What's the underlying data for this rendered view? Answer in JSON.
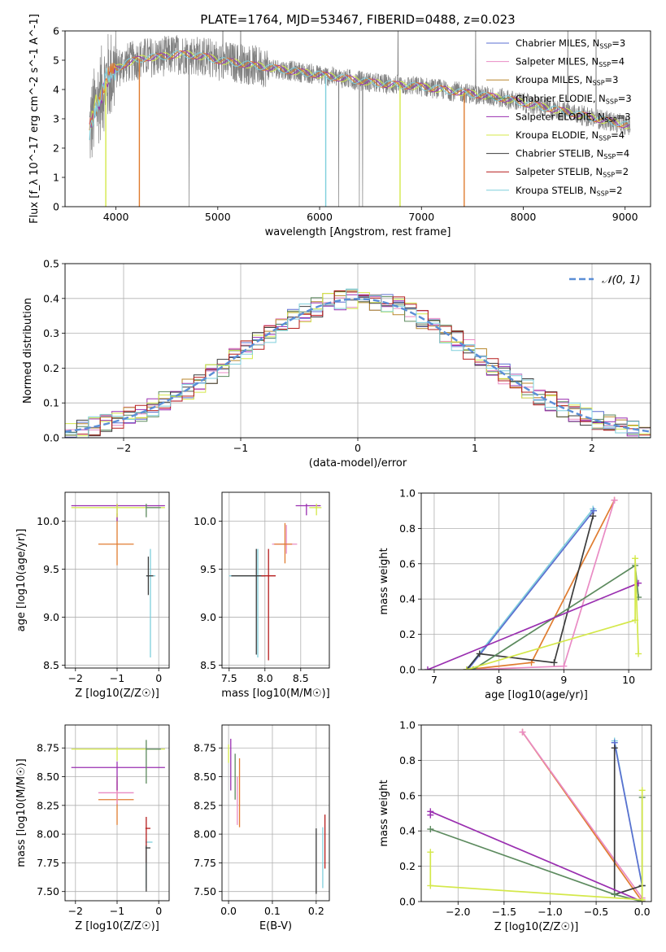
{
  "figure_title": "PLATE=1764, MJD=53467, FIBERID=0488, z=0.023",
  "colors": {
    "chabrier_miles": "#5b6fd0",
    "salpeter_miles": "#e98bc4",
    "kroupa_miles": "#b8862b",
    "chabrier_elodie": "#5c8a5e",
    "salpeter_elodie": "#9a2fb0",
    "kroupa_elodie": "#d4e84a",
    "chabrier_stelib": "#3c3c3c",
    "salpeter_stelib": "#b51c1c",
    "kroupa_stelib": "#7fcfdc",
    "data_gray": "#808080",
    "model_orange": "#e07c30",
    "gaussian": "#5b8ed6",
    "grid": "#b0b0b0"
  },
  "chart_data": [
    {
      "id": "spectrum",
      "type": "line",
      "xlabel": "wavelength [Angstrom, rest frame]",
      "ylabel": "Flux [f_λ 10^-17 erg cm^-2 s^-1 A^-1]",
      "xlim": [
        3500,
        9250
      ],
      "ylim": [
        0,
        6
      ],
      "xticks": [
        4000,
        5000,
        6000,
        7000,
        8000,
        9000
      ],
      "yticks": [
        0,
        1,
        2,
        3,
        4,
        5,
        6
      ],
      "grid": false,
      "legend_position": "upper-right",
      "legend": [
        {
          "label": "Chabrier MILES, N",
          "sub": "SSP",
          "suffix": "=3",
          "color_key": "chabrier_miles"
        },
        {
          "label": "Salpeter MILES, N",
          "sub": "SSP",
          "suffix": "=4",
          "color_key": "salpeter_miles"
        },
        {
          "label": "Kroupa MILES, N",
          "sub": "SSP",
          "suffix": "=3",
          "color_key": "kroupa_miles"
        },
        {
          "label": "Chabrier ELODIE, N",
          "sub": "SSP",
          "suffix": "=3",
          "color_key": "chabrier_elodie"
        },
        {
          "label": "Salpeter ELODIE, N",
          "sub": "SSP",
          "suffix": "=3",
          "color_key": "salpeter_elodie"
        },
        {
          "label": "Kroupa ELODIE, N",
          "sub": "SSP",
          "suffix": "=4",
          "color_key": "kroupa_elodie"
        },
        {
          "label": "Chabrier STELIB, N",
          "sub": "SSP",
          "suffix": "=4",
          "color_key": "chabrier_stelib"
        },
        {
          "label": "Salpeter STELIB, N",
          "sub": "SSP",
          "suffix": "=2",
          "color_key": "salpeter_stelib"
        },
        {
          "label": "Kroupa STELIB, N",
          "sub": "SSP",
          "suffix": "=2",
          "color_key": "kroupa_stelib"
        }
      ],
      "continuum": {
        "x": [
          3740,
          3800,
          3900,
          4000,
          4100,
          4200,
          4300,
          4400,
          4500,
          4600,
          4700,
          4800,
          4900,
          5000,
          5200,
          5400,
          5600,
          5800,
          6000,
          6200,
          6400,
          6600,
          6800,
          7000,
          7200,
          7400,
          7600,
          7800,
          8000,
          8200,
          8400,
          8600,
          8800,
          9000,
          9050
        ],
        "y": [
          2.6,
          3.4,
          4.3,
          4.7,
          4.9,
          5.0,
          5.1,
          5.1,
          5.15,
          5.2,
          5.2,
          5.15,
          5.1,
          5.0,
          4.9,
          4.8,
          4.7,
          4.6,
          4.5,
          4.4,
          4.3,
          4.2,
          4.15,
          4.1,
          4.0,
          3.9,
          3.8,
          3.7,
          3.55,
          3.4,
          3.25,
          3.1,
          2.95,
          2.8,
          2.75
        ]
      },
      "model_dropouts": [
        {
          "x": 3900,
          "color_key": "kroupa_elodie"
        },
        {
          "x": 4230,
          "color_key": "model_orange"
        },
        {
          "x": 6060,
          "color_key": "kroupa_stelib"
        },
        {
          "x": 6790,
          "color_key": "kroupa_elodie"
        },
        {
          "x": 7420,
          "color_key": "model_orange"
        }
      ]
    },
    {
      "id": "residuals",
      "type": "histogram",
      "xlabel": "(data-model)/error",
      "ylabel": "Normed distribution",
      "xlim": [
        -2.5,
        2.5
      ],
      "ylim": [
        0,
        0.5
      ],
      "xticks": [
        -2,
        -1,
        0,
        1,
        2
      ],
      "yticks": [
        0.0,
        0.1,
        0.2,
        0.3,
        0.4,
        0.5
      ],
      "grid": true,
      "legend_position": "upper-right",
      "legend": [
        {
          "label": "𝒩(0, 1)",
          "color_key": "gaussian",
          "style": "dashed"
        }
      ],
      "bin_width": 0.1
    },
    {
      "id": "age_vs_Z",
      "type": "errorbar",
      "xlabel": "Z [log10(Z/Z☉)]",
      "ylabel": "age  [log10(age/yr)]",
      "xlim": [
        -2.25,
        0.25
      ],
      "ylim": [
        8.47,
        10.3
      ],
      "xticks": [
        -2,
        -1,
        0
      ],
      "yticks": [
        8.5,
        9.0,
        9.5,
        10.0
      ],
      "grid": true,
      "points": [
        {
          "x": -1.0,
          "y": 9.76,
          "xerr": [
            0.45,
            0.4
          ],
          "yerr": [
            0.22,
            0.32
          ],
          "color_key": "model_orange"
        },
        {
          "x": -1.0,
          "y": 10.16,
          "xerr": [
            1.1,
            1.15
          ],
          "yerr": [
            0.16,
            0.02
          ],
          "color_key": "salpeter_elodie"
        },
        {
          "x": -1.0,
          "y": 10.14,
          "xerr": [
            1.1,
            1.15
          ],
          "yerr": [
            0.1,
            0.04
          ],
          "color_key": "kroupa_elodie"
        },
        {
          "x": -0.3,
          "y": 10.14,
          "xerr": [
            0.0,
            0.35
          ],
          "yerr": [
            0.1,
            0.04
          ],
          "color_key": "chabrier_elodie"
        },
        {
          "x": -0.2,
          "y": 9.43,
          "xerr": [
            0.1,
            0.12
          ],
          "yerr": [
            0.85,
            0.28
          ],
          "color_key": "kroupa_stelib"
        },
        {
          "x": -0.25,
          "y": 9.43,
          "xerr": [
            0.05,
            0.12
          ],
          "yerr": [
            0.2,
            0.2
          ],
          "color_key": "chabrier_stelib"
        }
      ]
    },
    {
      "id": "age_vs_mass",
      "type": "errorbar",
      "xlabel": "mass [log10(M/M☉)]",
      "ylabel": "",
      "xlim": [
        7.4,
        8.9
      ],
      "ylim": [
        8.47,
        10.3
      ],
      "xticks": [
        7.5,
        8.0,
        8.5
      ],
      "yticks": [
        8.5,
        9.0,
        9.5,
        10.0
      ],
      "grid": true,
      "points": [
        {
          "x": 8.3,
          "y": 9.76,
          "xerr": [
            0.2,
            0.15
          ],
          "yerr": [
            0.1,
            0.2
          ],
          "color_key": "salpeter_miles"
        },
        {
          "x": 8.28,
          "y": 9.76,
          "xerr": [
            0.15,
            0.1
          ],
          "yerr": [
            0.2,
            0.22
          ],
          "color_key": "model_orange"
        },
        {
          "x": 8.58,
          "y": 10.16,
          "xerr": [
            0.15,
            0.2
          ],
          "yerr": [
            0.1,
            0.02
          ],
          "color_key": "salpeter_elodie"
        },
        {
          "x": 8.72,
          "y": 10.14,
          "xerr": [
            0.1,
            0.07
          ],
          "yerr": [
            0.08,
            0.04
          ],
          "color_key": "kroupa_elodie"
        },
        {
          "x": 7.9,
          "y": 9.43,
          "xerr": [
            0.4,
            0.08
          ],
          "yerr": [
            0.85,
            0.28
          ],
          "color_key": "kroupa_stelib"
        },
        {
          "x": 7.88,
          "y": 9.43,
          "xerr": [
            0.35,
            0.12
          ],
          "yerr": [
            0.82,
            0.28
          ],
          "color_key": "chabrier_stelib"
        },
        {
          "x": 8.05,
          "y": 9.43,
          "xerr": [
            0.1,
            0.1
          ],
          "yerr": [
            0.88,
            0.28
          ],
          "color_key": "salpeter_stelib"
        }
      ]
    },
    {
      "id": "weight_vs_age",
      "type": "line",
      "xlabel": "age  [log10(age/yr)]",
      "ylabel": "mass weight",
      "xlim": [
        6.8,
        10.35
      ],
      "ylim": [
        0,
        1
      ],
      "xticks": [
        7,
        8,
        9,
        10
      ],
      "yticks": [
        0.0,
        0.2,
        0.4,
        0.6,
        0.8,
        1.0
      ],
      "grid": true,
      "series": [
        {
          "color_key": "model_orange",
          "x": [
            7.5,
            8.5,
            9.78
          ],
          "y": [
            0.0,
            0.04,
            0.96
          ]
        },
        {
          "color_key": "salpeter_miles",
          "x": [
            7.6,
            9.0,
            9.78
          ],
          "y": [
            0.0,
            0.02,
            0.96
          ]
        },
        {
          "color_key": "kroupa_stelib",
          "x": [
            7.5,
            9.45
          ],
          "y": [
            0.0,
            0.91
          ]
        },
        {
          "color_key": "chabrier_miles",
          "x": [
            7.52,
            9.46
          ],
          "y": [
            0.0,
            0.9
          ]
        },
        {
          "color_key": "chabrier_stelib",
          "x": [
            7.5,
            7.7,
            8.85,
            9.45
          ],
          "y": [
            0.0,
            0.09,
            0.04,
            0.87
          ]
        },
        {
          "color_key": "chabrier_elodie",
          "x": [
            7.6,
            10.1,
            10.15
          ],
          "y": [
            0.0,
            0.59,
            0.41
          ]
        },
        {
          "color_key": "salpeter_elodie",
          "x": [
            6.9,
            10.15
          ],
          "y": [
            0.0,
            0.49
          ]
        },
        {
          "color_key": "kroupa_elodie",
          "x": [
            7.5,
            10.1,
            10.1,
            10.15
          ],
          "y": [
            0.0,
            0.28,
            0.63,
            0.09
          ]
        }
      ]
    },
    {
      "id": "mass_vs_Z",
      "type": "errorbar",
      "xlabel": "Z [log10(Z/Z☉)]",
      "ylabel": "mass [log10(M/M☉)]",
      "xlim": [
        -2.25,
        0.25
      ],
      "ylim": [
        7.42,
        8.95
      ],
      "xticks": [
        -2,
        -1,
        0
      ],
      "yticks": [
        7.5,
        7.75,
        8.0,
        8.25,
        8.5,
        8.75
      ],
      "grid": true,
      "points": [
        {
          "x": -1.0,
          "y": 8.3,
          "xerr": [
            0.45,
            0.4
          ],
          "yerr": [
            0.22,
            0.2
          ],
          "color_key": "model_orange"
        },
        {
          "x": -1.0,
          "y": 8.36,
          "xerr": [
            0.45,
            0.4
          ],
          "yerr": [
            0.1,
            0.1
          ],
          "color_key": "salpeter_miles"
        },
        {
          "x": -1.0,
          "y": 8.58,
          "xerr": [
            1.1,
            1.15
          ],
          "yerr": [
            0.2,
            0.05
          ],
          "color_key": "salpeter_elodie"
        },
        {
          "x": -1.0,
          "y": 8.74,
          "xerr": [
            1.1,
            1.15
          ],
          "yerr": [
            0.1,
            0.02
          ],
          "color_key": "kroupa_elodie"
        },
        {
          "x": -0.3,
          "y": 8.74,
          "xerr": [
            0.0,
            0.35
          ],
          "yerr": [
            0.3,
            0.08
          ],
          "color_key": "chabrier_elodie"
        },
        {
          "x": -0.3,
          "y": 7.93,
          "xerr": [
            0.02,
            0.15
          ],
          "yerr": [
            0.4,
            0.03
          ],
          "color_key": "kroupa_stelib"
        },
        {
          "x": -0.3,
          "y": 8.05,
          "xerr": [
            0.02,
            0.1
          ],
          "yerr": [
            0.3,
            0.1
          ],
          "color_key": "salpeter_stelib"
        },
        {
          "x": -0.3,
          "y": 7.88,
          "xerr": [
            0.02,
            0.1
          ],
          "yerr": [
            0.38,
            0.02
          ],
          "color_key": "chabrier_stelib"
        }
      ]
    },
    {
      "id": "mass_vs_ebv",
      "type": "errorbar",
      "xlabel": "E(B-V)",
      "ylabel": "",
      "xlim": [
        -0.015,
        0.23
      ],
      "ylim": [
        7.42,
        8.95
      ],
      "xticks": [
        0.0,
        0.1,
        0.2
      ],
      "yticks": [
        7.5,
        7.75,
        8.0,
        8.25,
        8.5,
        8.75
      ],
      "grid": true,
      "points": [
        {
          "x": 0.0,
          "y": 8.74,
          "xerr": [
            0.0,
            0.0
          ],
          "yerr": [
            0.12,
            0.04
          ],
          "color_key": "kroupa_elodie"
        },
        {
          "x": 0.005,
          "y": 8.58,
          "xerr": [
            0.0,
            0.0
          ],
          "yerr": [
            0.2,
            0.25
          ],
          "color_key": "salpeter_elodie"
        },
        {
          "x": 0.015,
          "y": 8.55,
          "xerr": [
            0.0,
            0.0
          ],
          "yerr": [
            0.25,
            0.15
          ],
          "color_key": "chabrier_elodie"
        },
        {
          "x": 0.02,
          "y": 8.3,
          "xerr": [
            0.0,
            0.0
          ],
          "yerr": [
            0.22,
            0.2
          ],
          "color_key": "salpeter_miles"
        },
        {
          "x": 0.025,
          "y": 8.36,
          "xerr": [
            0.0,
            0.0
          ],
          "yerr": [
            0.3,
            0.3
          ],
          "color_key": "model_orange"
        },
        {
          "x": 0.2,
          "y": 7.88,
          "xerr": [
            0.0,
            0.0
          ],
          "yerr": [
            0.4,
            0.17
          ],
          "color_key": "chabrier_stelib"
        },
        {
          "x": 0.215,
          "y": 7.93,
          "xerr": [
            0.0,
            0.0
          ],
          "yerr": [
            0.4,
            0.13
          ],
          "color_key": "kroupa_stelib"
        },
        {
          "x": 0.22,
          "y": 8.05,
          "xerr": [
            0.0,
            0.0
          ],
          "yerr": [
            0.35,
            0.12
          ],
          "color_key": "salpeter_stelib"
        }
      ]
    },
    {
      "id": "weight_vs_Z",
      "type": "line",
      "xlabel": "Z [log10(Z/Z☉)]",
      "ylabel": "mass weight",
      "xlim": [
        -2.4,
        0.1
      ],
      "ylim": [
        0,
        1
      ],
      "xticks": [
        -2.0,
        -1.5,
        -1.0,
        -0.5,
        0.0
      ],
      "yticks": [
        0.0,
        0.2,
        0.4,
        0.6,
        0.8,
        1.0
      ],
      "grid": true,
      "series": [
        {
          "color_key": "model_orange",
          "x": [
            -1.3,
            0.0
          ],
          "y": [
            0.96,
            0.0
          ]
        },
        {
          "color_key": "salpeter_miles",
          "x": [
            -1.3,
            0.0
          ],
          "y": [
            0.96,
            0.02
          ]
        },
        {
          "color_key": "kroupa_stelib",
          "x": [
            -0.3,
            0.0
          ],
          "y": [
            0.91,
            0.09
          ]
        },
        {
          "color_key": "chabrier_miles",
          "x": [
            -0.3,
            0.0
          ],
          "y": [
            0.9,
            0.09
          ]
        },
        {
          "color_key": "chabrier_stelib",
          "x": [
            -0.3,
            -0.3,
            0.0
          ],
          "y": [
            0.87,
            0.04,
            0.09
          ]
        },
        {
          "color_key": "salpeter_elodie",
          "x": [
            -2.3,
            -2.3,
            0.0
          ],
          "y": [
            0.49,
            0.51,
            0.0
          ]
        },
        {
          "color_key": "chabrier_elodie",
          "x": [
            -2.3,
            -0.3,
            0.0,
            0.0
          ],
          "y": [
            0.41,
            0.04,
            0.0,
            0.59
          ]
        },
        {
          "color_key": "kroupa_elodie",
          "x": [
            -2.3,
            -2.3,
            0.0,
            0.0
          ],
          "y": [
            0.28,
            0.09,
            0.01,
            0.63
          ]
        }
      ]
    }
  ]
}
